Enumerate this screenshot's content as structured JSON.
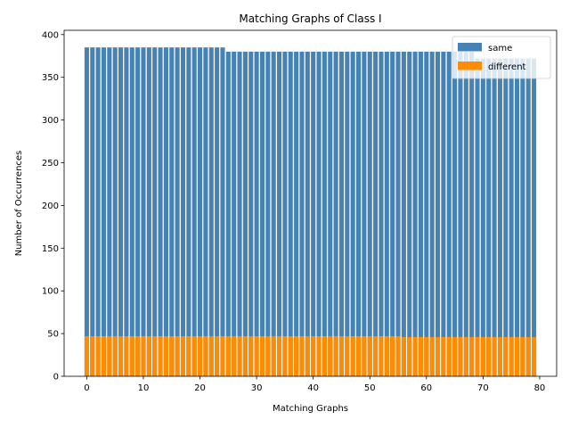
{
  "chart_data": {
    "type": "bar",
    "title": "Matching Graphs of Class I",
    "xlabel": "Matching Graphs",
    "ylabel": "Number of Occurrences",
    "xlim": [
      -4,
      83
    ],
    "ylim": [
      0,
      405
    ],
    "xticks": [
      0,
      10,
      20,
      30,
      40,
      50,
      60,
      70,
      80
    ],
    "yticks": [
      0,
      50,
      100,
      150,
      200,
      250,
      300,
      350,
      400
    ],
    "legend": "top-right",
    "grid": false,
    "overlapping": true,
    "series": [
      {
        "name": "same",
        "color": "#4682b4",
        "values": [
          385,
          385,
          385,
          385,
          385,
          385,
          385,
          385,
          385,
          385,
          385,
          385,
          385,
          385,
          385,
          385,
          385,
          385,
          385,
          385,
          385,
          385,
          385,
          385,
          385,
          380,
          380,
          380,
          380,
          380,
          380,
          380,
          380,
          380,
          380,
          380,
          380,
          380,
          380,
          380,
          380,
          380,
          380,
          380,
          380,
          380,
          380,
          380,
          380,
          380,
          380,
          380,
          380,
          380,
          380,
          380,
          380,
          380,
          380,
          380,
          380,
          380,
          380,
          380,
          380,
          380,
          380,
          380,
          380,
          372,
          372,
          372,
          372,
          372,
          372,
          372,
          372,
          372,
          372,
          372
        ]
      },
      {
        "name": "different",
        "color": "#ff8c00",
        "values": [
          47,
          47,
          47,
          47,
          47,
          47,
          47,
          47,
          47,
          47,
          47,
          47,
          47,
          47,
          47,
          47,
          47,
          47,
          47,
          47,
          47,
          47,
          47,
          47,
          47,
          47,
          47,
          47,
          47,
          47,
          47,
          47,
          47,
          47,
          47,
          47,
          47,
          47,
          47,
          47,
          47,
          47,
          47,
          47,
          47,
          47,
          47,
          47,
          47,
          47,
          47,
          47,
          47,
          47,
          47,
          47,
          46,
          46,
          46,
          46,
          46,
          46,
          46,
          46,
          46,
          46,
          46,
          46,
          46,
          46,
          46,
          46,
          46,
          46,
          46,
          46,
          46,
          46,
          46,
          46
        ]
      }
    ]
  }
}
